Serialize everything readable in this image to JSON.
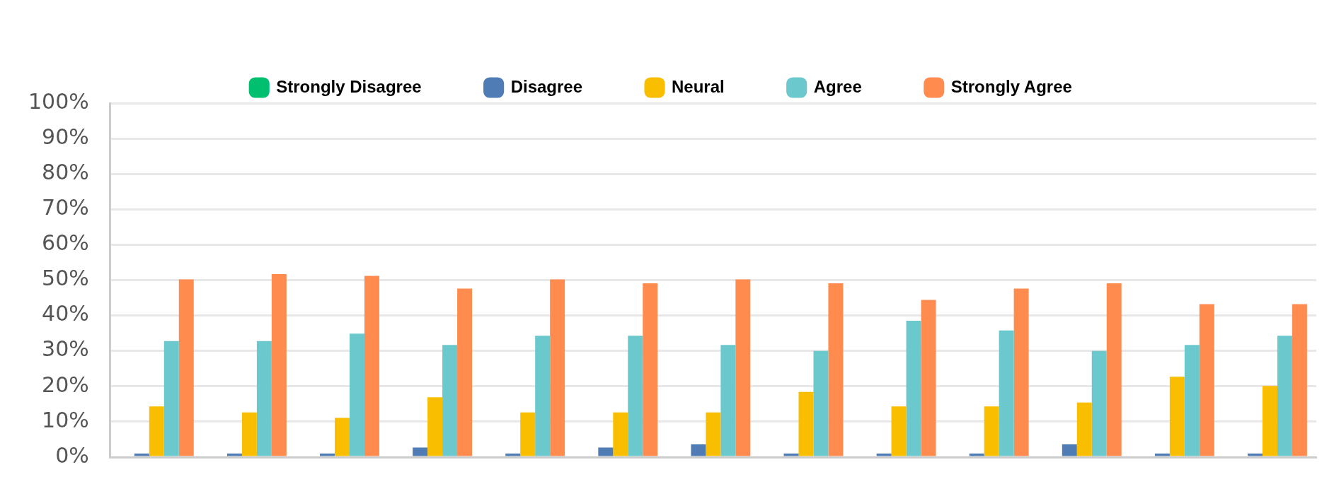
{
  "chart_data": {
    "type": "bar",
    "categories": [
      null,
      null,
      null,
      null,
      null,
      null,
      null,
      null,
      null,
      null,
      null,
      null,
      null
    ],
    "series": [
      {
        "name": "Strongly Disagree",
        "color": "#00bf6f",
        "values": [
          0,
          0,
          0,
          0,
          0,
          0,
          0,
          0,
          0,
          0,
          0,
          0,
          0
        ]
      },
      {
        "name": "Disagree",
        "color": "#507cb6",
        "values": [
          1,
          1,
          1,
          2.7,
          1,
          2.7,
          3.6,
          1,
          1,
          1,
          3.6,
          1,
          1
        ]
      },
      {
        "name": "Neural",
        "color": "#f9be00",
        "values": [
          14.3,
          12.6,
          11.1,
          16.9,
          12.6,
          12.6,
          12.6,
          18.4,
          14.3,
          14.3,
          15.4,
          22.7,
          20.1
        ]
      },
      {
        "name": "Agree",
        "color": "#6bc8cd",
        "values": [
          32.8,
          32.8,
          34.9,
          31.7,
          34.3,
          34.3,
          31.7,
          30,
          38.5,
          35.8,
          30,
          31.7,
          34.3
        ]
      },
      {
        "name": "Strongly Agree",
        "color": "#ff8b4f",
        "values": [
          50.2,
          51.7,
          51.2,
          47.6,
          50.2,
          49.1,
          50.2,
          49.1,
          44.4,
          47.6,
          49.1,
          43.2,
          43.2
        ]
      }
    ],
    "ylim": [
      0,
      100
    ],
    "yticks": [
      {
        "value": 0,
        "label": "0%"
      },
      {
        "value": 10,
        "label": "10%"
      },
      {
        "value": 20,
        "label": "20%"
      },
      {
        "value": 30,
        "label": "30%"
      },
      {
        "value": 40,
        "label": "40%"
      },
      {
        "value": 50,
        "label": "50%"
      },
      {
        "value": 60,
        "label": "60%"
      },
      {
        "value": 70,
        "label": "70%"
      },
      {
        "value": 80,
        "label": "80%"
      },
      {
        "value": 90,
        "label": "90%"
      },
      {
        "value": 100,
        "label": "100%"
      }
    ],
    "grid": "y",
    "legend": "top"
  }
}
